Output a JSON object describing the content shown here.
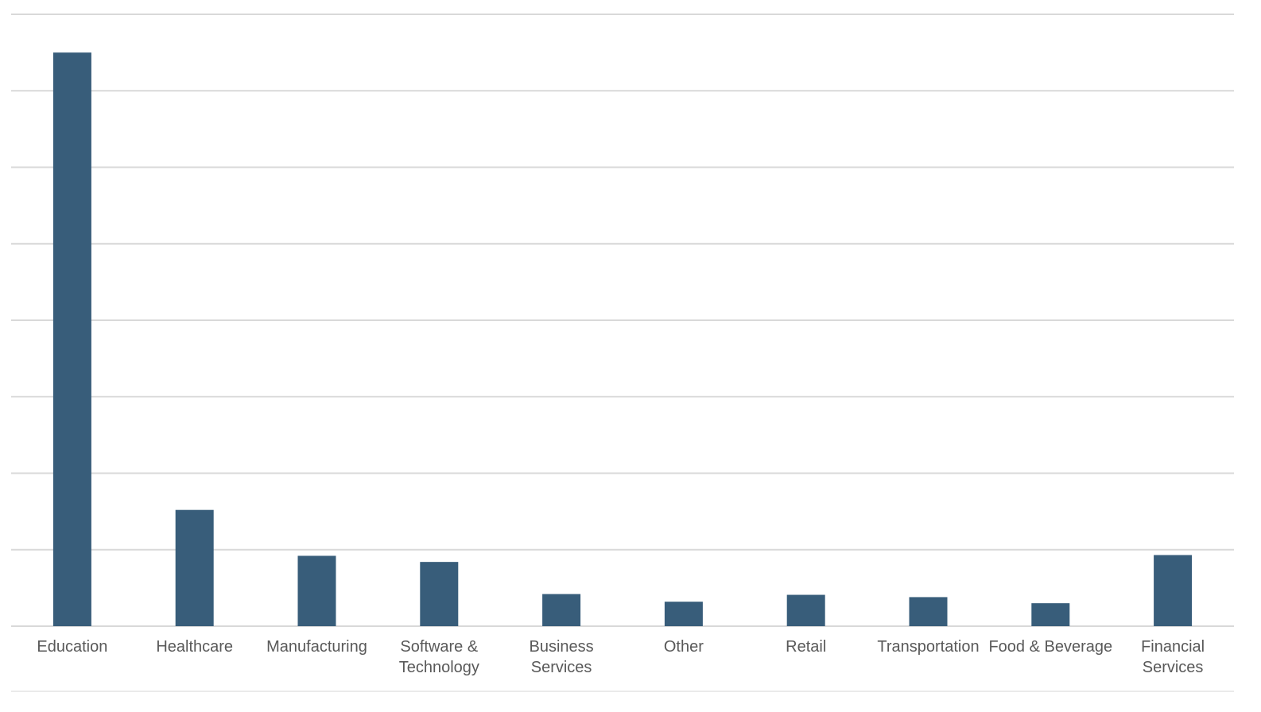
{
  "chart_data": {
    "type": "bar",
    "title": "",
    "xlabel": "",
    "ylabel": "",
    "categories": [
      [
        "Education"
      ],
      [
        "Healthcare"
      ],
      [
        "Manufacturing"
      ],
      [
        "Software &",
        "Technology"
      ],
      [
        "Business",
        "Services"
      ],
      [
        "Other"
      ],
      [
        "Retail"
      ],
      [
        "Transportation"
      ],
      [
        "Food & Beverage"
      ],
      [
        "Financial",
        "Services"
      ]
    ],
    "values": [
      7.5,
      1.52,
      0.92,
      0.84,
      0.42,
      0.32,
      0.41,
      0.38,
      0.3,
      0.93
    ],
    "ylim": [
      0,
      8
    ],
    "gridlines": 8,
    "grid": true,
    "y_tick_labels_visible": false,
    "legend": "none",
    "colors": {
      "bar": "#385d7a",
      "grid": "#d9d9d9",
      "label": "#595959"
    }
  }
}
